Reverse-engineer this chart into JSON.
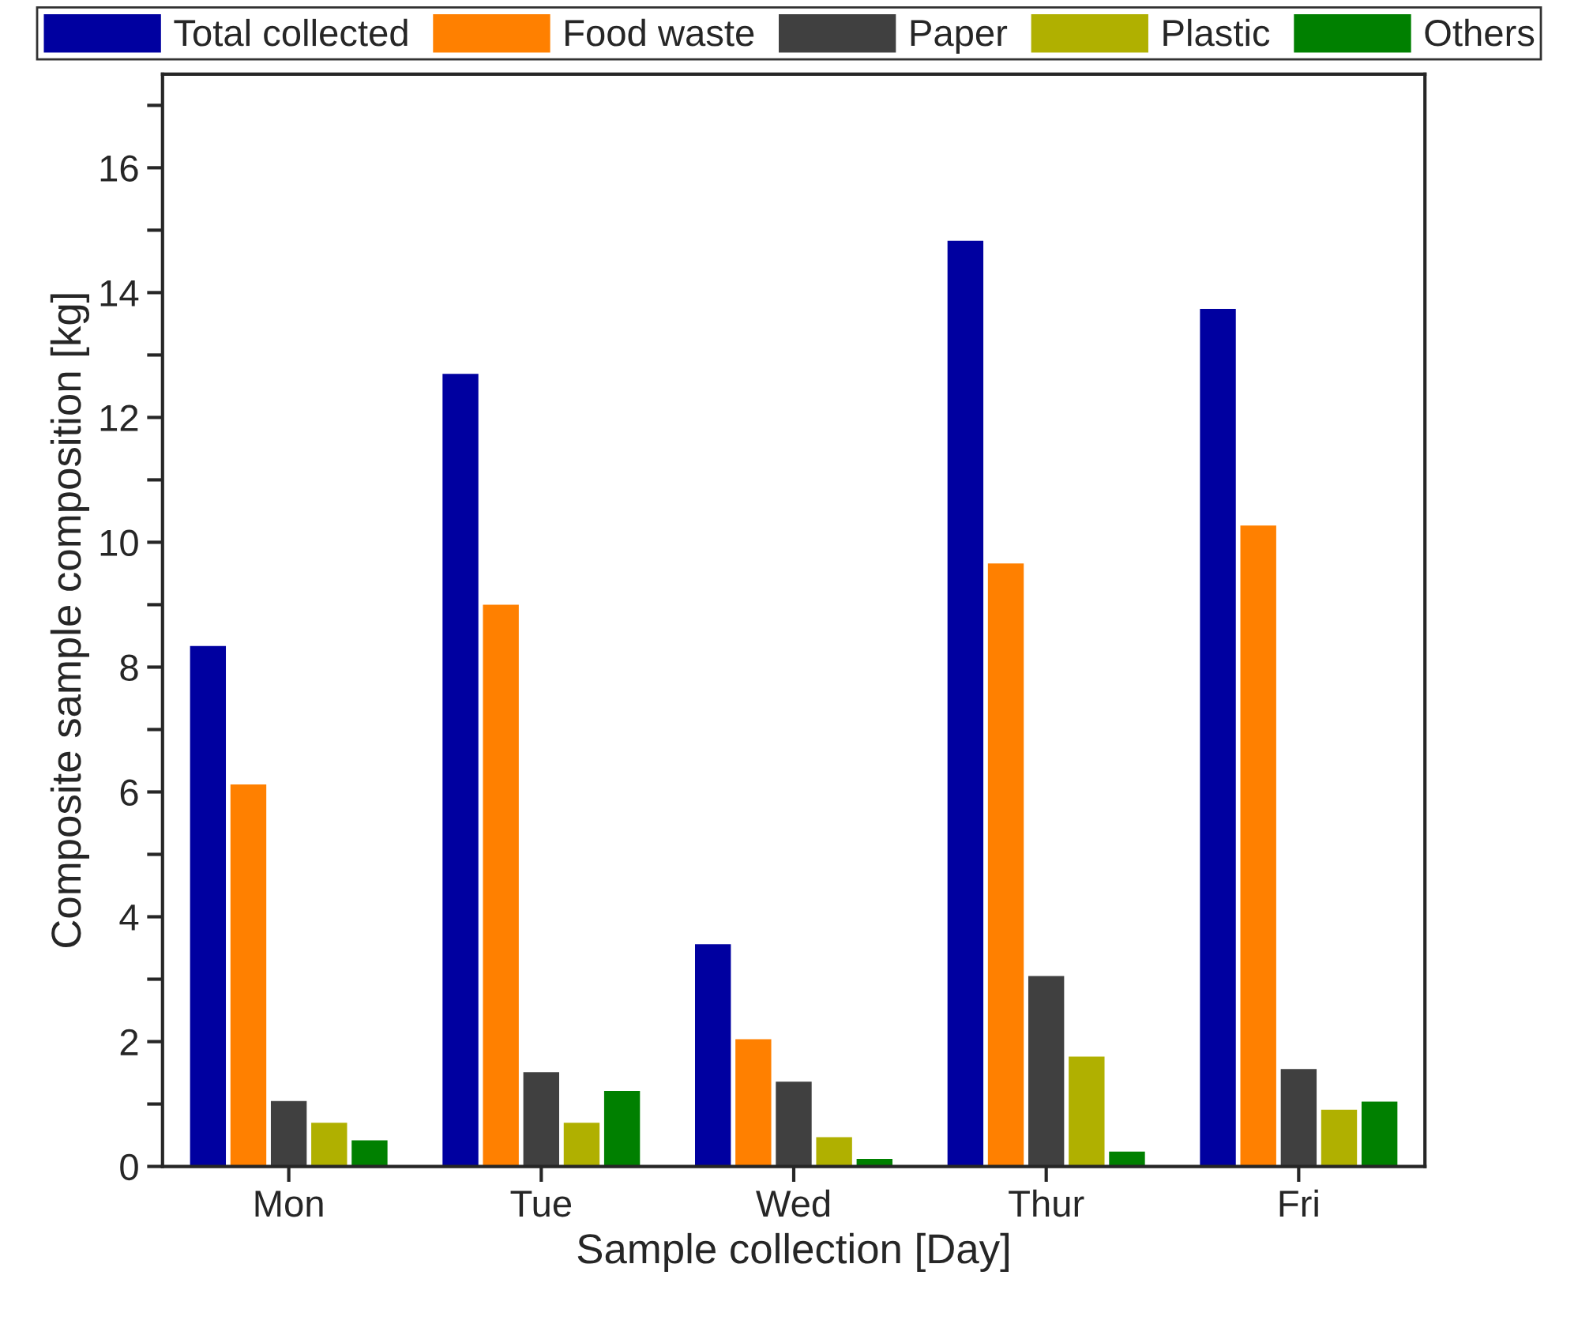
{
  "chart_data": {
    "type": "bar",
    "xlabel": "Sample collection [Day]",
    "ylabel": "Composite sample composition [kg]",
    "categories": [
      "Mon",
      "Tue",
      "Wed",
      "Thur",
      "Fri"
    ],
    "series": [
      {
        "name": "Total collected",
        "color": "#0000a0",
        "values": [
          8.35,
          12.71,
          3.57,
          14.84,
          13.75
        ]
      },
      {
        "name": "Food waste",
        "color": "#ff8000",
        "values": [
          6.13,
          9.01,
          2.05,
          9.67,
          10.28
        ]
      },
      {
        "name": "Paper",
        "color": "#404040",
        "values": [
          1.06,
          1.52,
          1.37,
          3.06,
          1.57
        ]
      },
      {
        "name": "Plastic",
        "color": "#b0b000",
        "values": [
          0.71,
          0.71,
          0.48,
          1.77,
          0.92
        ]
      },
      {
        "name": "Others",
        "color": "#008000",
        "values": [
          0.43,
          1.22,
          0.13,
          0.25,
          1.05
        ]
      }
    ],
    "ylim": [
      0,
      17.5
    ],
    "yticks": [
      0,
      {
        "value": 1,
        "label": null
      },
      2,
      {
        "value": 3,
        "label": null
      },
      4,
      {
        "value": 5,
        "label": null
      },
      6,
      {
        "value": 7,
        "label": null
      },
      8,
      {
        "value": 9,
        "label": null
      },
      10,
      {
        "value": 11,
        "label": null
      },
      12,
      {
        "value": 13,
        "label": null
      },
      14,
      {
        "value": 15,
        "label": null
      },
      16,
      {
        "value": 17,
        "label": null
      }
    ],
    "grid": false,
    "legend": "top"
  }
}
